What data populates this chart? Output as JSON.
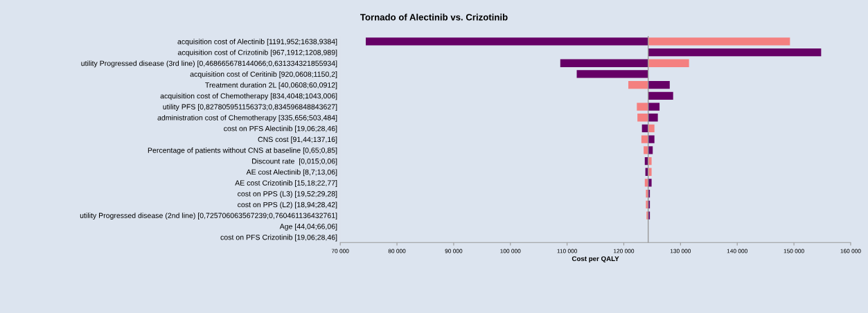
{
  "chart_data": {
    "type": "bar",
    "orientation": "horizontal",
    "title": "Tornado of Alectinib vs. Crizotinib",
    "xlabel": "Cost per QALY",
    "categories": [
      "acquisition cost of Alectinib [1191,952;1638,9384]",
      "acquisition cost of Crizotinib [967,1912;1208,989]",
      "utility Progressed disease (3rd line) [0,468665678144066;0,631334321855934]",
      "acquisition cost of Ceritinib [920,0608;1150,2]",
      "Treatment duration 2L [40,0608;60,0912]",
      "acquisition cost of Chemotherapy [834,4048;1043,006]",
      "utility PFS [0,827805951156373;0,834596848843627]",
      "administration cost of Chemotherapy [335,656;503,484]",
      "cost on PFS Alectinib [19,06;28,46]",
      "CNS cost [91,44;137,16]",
      "Percentage of patients without CNS at baseline [0,65;0,85]",
      "Discount rate  [0,015;0,06]",
      "AE cost Alectinib [8,7;13,06]",
      "AE cost Crizotinib [15,18;22,77]",
      "cost on PPS (L3) [19,52;29,28]",
      "cost on PPS (L2) [18,94;28,42]",
      "utility Progressed disease (2nd line) [0,725706063567239;0,760461136432761]",
      "Age [44,04;66,06]",
      "cost on PFS Crizotinib [19,06;28,46]"
    ],
    "series": [
      {
        "color": "#660066",
        "base": [
          74500,
          124300,
          108800,
          111700,
          124300,
          124300,
          124300,
          124300,
          123200,
          124300,
          124300,
          123700,
          123800,
          124300,
          124300,
          124300,
          124300,
          null,
          null
        ],
        "values": [
          49800,
          30500,
          15500,
          12600,
          3800,
          4400,
          2000,
          1700,
          1100,
          1100,
          800,
          600,
          500,
          600,
          300,
          300,
          300,
          null,
          null
        ]
      },
      {
        "color": "#f48080",
        "base": [
          124300,
          null,
          124300,
          null,
          120800,
          null,
          122300,
          122400,
          124300,
          123100,
          123500,
          124300,
          124300,
          123700,
          123900,
          123900,
          124000,
          null,
          null
        ],
        "values": [
          25000,
          null,
          7200,
          null,
          3500,
          null,
          2000,
          1900,
          1100,
          1200,
          800,
          600,
          600,
          600,
          400,
          400,
          300,
          null,
          null
        ]
      }
    ],
    "xlim": [
      70000,
      160000
    ],
    "xticks": [
      {
        "value": 70000,
        "label": "70 000"
      },
      {
        "value": 80000,
        "label": "80 000"
      },
      {
        "value": 90000,
        "label": "90 000"
      },
      {
        "value": 100000,
        "label": "100 000"
      },
      {
        "value": 110000,
        "label": "110 000"
      },
      {
        "value": 120000,
        "label": "120 000"
      },
      {
        "value": 130000,
        "label": "130 000"
      },
      {
        "value": 140000,
        "label": "140 000"
      },
      {
        "value": 150000,
        "label": "150 000"
      },
      {
        "value": 160000,
        "label": "160 000"
      }
    ],
    "ref_lines": [
      {
        "axis": "x",
        "value": 124300,
        "color": "#999999"
      }
    ],
    "grid": false,
    "legend": false
  }
}
